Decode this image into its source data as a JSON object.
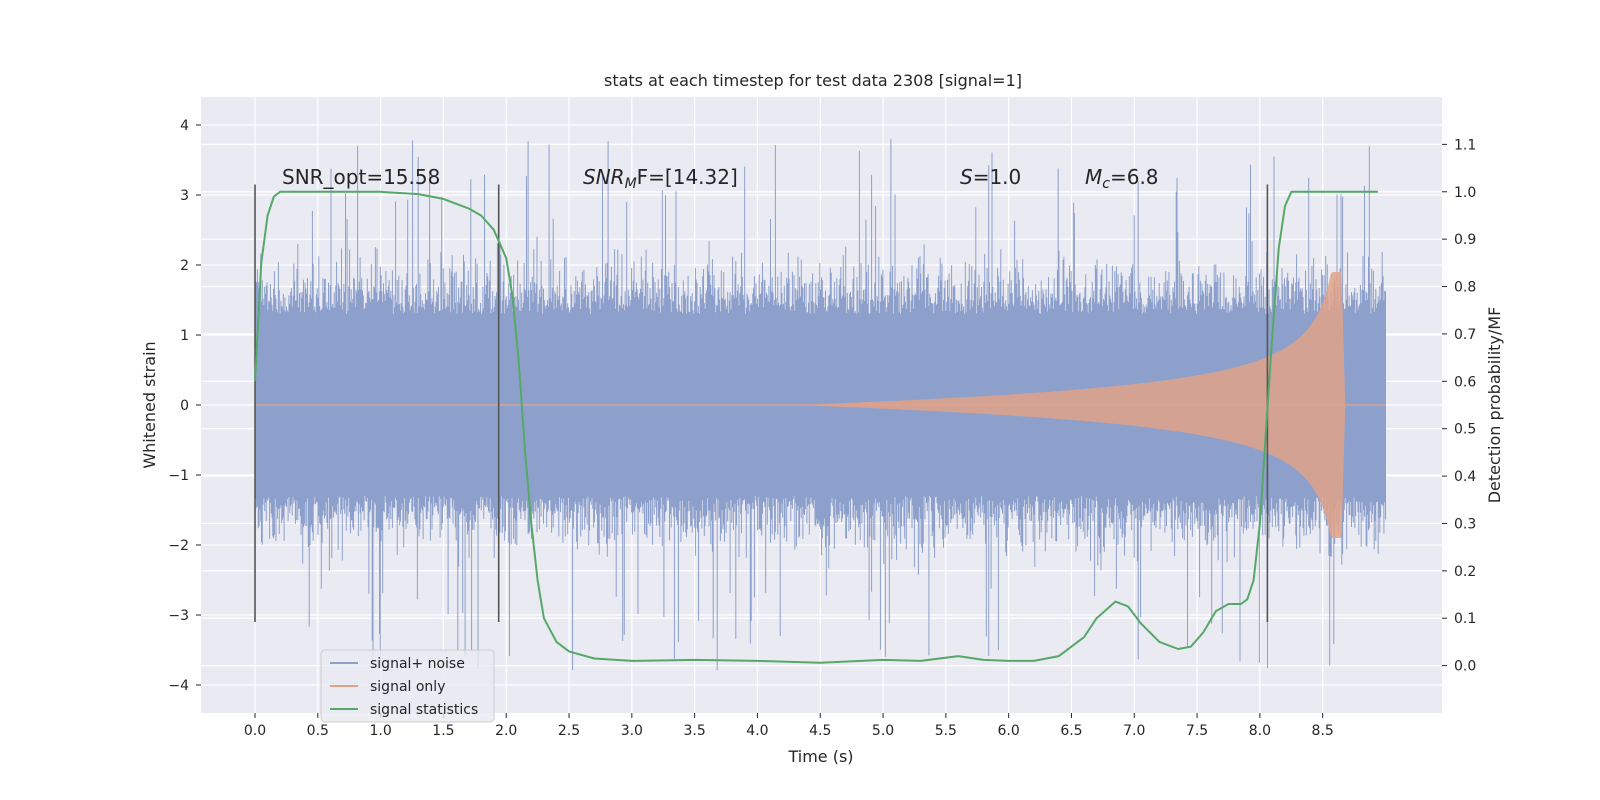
{
  "chart_data": {
    "type": "line",
    "title": "stats at each timestep for test data 2308 [signal=1]",
    "xlabel": "Time (s)",
    "ylabel": "Whitened strain",
    "y2label": "Detection probability/MF",
    "xlim": [
      -0.43,
      9.45
    ],
    "ylim": [
      -4.4,
      4.4
    ],
    "y2lim": [
      -0.1,
      1.2
    ],
    "x_ticks": [
      "0.0",
      "0.5",
      "1.0",
      "1.5",
      "2.0",
      "2.5",
      "3.0",
      "3.5",
      "4.0",
      "4.5",
      "5.0",
      "5.5",
      "6.0",
      "6.5",
      "7.0",
      "7.5",
      "8.0",
      "8.5"
    ],
    "y_ticks": [
      "4",
      "3",
      "2",
      "1",
      "0",
      "−1",
      "−2",
      "−3",
      "−4"
    ],
    "y2_ticks": [
      "1.1",
      "1.0",
      "0.9",
      "0.8",
      "0.7",
      "0.6",
      "0.5",
      "0.4",
      "0.3",
      "0.2",
      "0.1",
      "0.0"
    ],
    "grid": true,
    "legend_position": "lower-left",
    "legend": [
      "signal+ noise",
      "signal only",
      "signal statistics"
    ],
    "colors": {
      "noise": "#8da0cb",
      "signal": "#e1a28a",
      "stats": "#55a868",
      "vline": "#555555",
      "background": "#eaeaf2",
      "grid": "#ffffff"
    },
    "annotations": {
      "snr_opt": "SNR_opt=15.58",
      "snr_mf_label": "SNR",
      "snr_mf_sub": "M",
      "snr_mf_tail": "F=[14.32]",
      "s_label": "S",
      "s_value": "=1.0",
      "mc_label": "M",
      "mc_sub": "c",
      "mc_value": "=6.8"
    },
    "vlines_x": [
      0.0,
      1.94,
      8.06
    ],
    "vline_range": [
      -3.1,
      3.15
    ],
    "noise": {
      "x_range": [
        0.0,
        9.0
      ],
      "envelope": [
        [
          0.0,
          1.3
        ],
        [
          9.0,
          1.3
        ]
      ],
      "spike_max": 4.0,
      "spike_min": -3.95
    },
    "signal_only": {
      "start": 4.3,
      "peak_time": 8.65,
      "peak_amp": 1.9,
      "end": 8.68,
      "amp_at_8": 0.5
    },
    "signal_statistics": {
      "x": [
        0.0,
        0.05,
        0.1,
        0.15,
        0.2,
        0.3,
        0.5,
        0.8,
        1.0,
        1.3,
        1.5,
        1.7,
        1.8,
        1.9,
        2.0,
        2.05,
        2.1,
        2.15,
        2.2,
        2.25,
        2.3,
        2.4,
        2.5,
        2.7,
        3.0,
        3.5,
        4.0,
        4.5,
        5.0,
        5.3,
        5.6,
        5.8,
        6.0,
        6.2,
        6.4,
        6.6,
        6.7,
        6.85,
        6.95,
        7.05,
        7.2,
        7.35,
        7.45,
        7.55,
        7.65,
        7.75,
        7.85,
        7.9,
        7.95,
        8.0,
        8.05,
        8.1,
        8.15,
        8.2,
        8.25,
        8.3,
        8.5,
        8.94
      ],
      "y": [
        0.6,
        0.85,
        0.95,
        0.99,
        1.0,
        1.0,
        1.0,
        1.0,
        1.0,
        0.995,
        0.985,
        0.965,
        0.95,
        0.92,
        0.86,
        0.78,
        0.64,
        0.45,
        0.3,
        0.18,
        0.1,
        0.05,
        0.03,
        0.015,
        0.01,
        0.012,
        0.01,
        0.006,
        0.012,
        0.01,
        0.02,
        0.012,
        0.01,
        0.01,
        0.02,
        0.06,
        0.1,
        0.135,
        0.125,
        0.09,
        0.05,
        0.035,
        0.04,
        0.07,
        0.115,
        0.13,
        0.13,
        0.14,
        0.18,
        0.3,
        0.5,
        0.7,
        0.88,
        0.97,
        1.0,
        1.0,
        1.0,
        1.0
      ]
    }
  }
}
